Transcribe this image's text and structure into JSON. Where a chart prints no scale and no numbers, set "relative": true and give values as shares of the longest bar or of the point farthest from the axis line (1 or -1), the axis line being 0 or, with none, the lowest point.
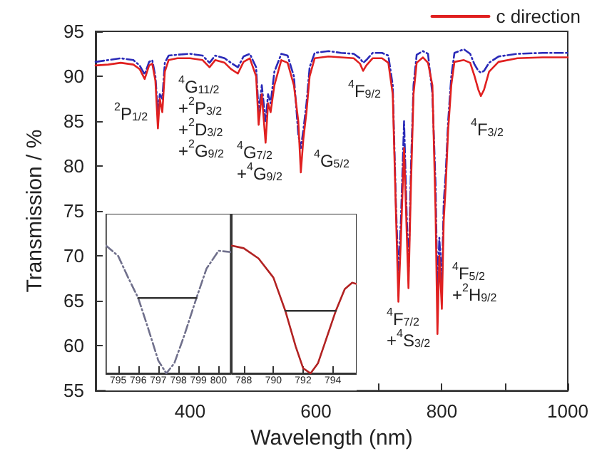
{
  "chart_data": [
    {
      "type": "line",
      "xlabel": "Wavelength (nm)",
      "ylabel": "Transmission / %",
      "legend": "top right",
      "xlim": [
        250,
        1000
      ],
      "xticks": [
        {
          "value": 300,
          "label": null
        },
        400,
        {
          "value": 500,
          "label": null
        },
        600,
        {
          "value": 700,
          "label": null
        },
        800,
        {
          "value": 900,
          "label": null
        },
        1000
      ],
      "ylim": [
        55,
        95
      ],
      "yticks": [
        55,
        60,
        65,
        70,
        75,
        80,
        85,
        90,
        95
      ],
      "x": [
        250,
        270,
        290,
        310,
        320,
        328,
        335,
        340,
        345,
        349,
        352,
        356,
        360,
        366,
        380,
        400,
        420,
        431,
        440,
        455,
        465,
        476,
        485,
        495,
        505,
        509,
        514,
        520,
        524,
        528,
        534,
        545,
        555,
        565,
        572,
        576,
        580,
        585,
        590,
        598,
        620,
        640,
        660,
        670,
        675,
        680,
        690,
        705,
        715,
        722,
        727,
        731,
        735,
        740,
        744,
        747,
        751,
        755,
        760,
        770,
        778,
        785,
        790,
        793,
        796,
        800,
        803,
        806,
        810,
        815,
        820,
        835,
        845,
        852,
        858,
        862,
        867,
        875,
        890,
        920,
        960,
        1000
      ],
      "series": [
        {
          "color": "#2a2ab8",
          "line_style": "dashed",
          "values": [
            91.6,
            91.8,
            92.0,
            91.8,
            91.2,
            90.2,
            91.6,
            91.8,
            90.0,
            86.0,
            88.0,
            87.5,
            91.5,
            92.3,
            92.4,
            92.5,
            92.3,
            91.5,
            92.3,
            92.0,
            91.5,
            91.0,
            92.2,
            92.5,
            91.0,
            86.0,
            89.0,
            85.0,
            88.0,
            87.0,
            90.5,
            92.5,
            92.3,
            90.0,
            83.5,
            82.0,
            84.0,
            87.0,
            91.0,
            92.6,
            92.8,
            92.6,
            92.5,
            92.0,
            91.5,
            91.8,
            92.6,
            92.6,
            92.3,
            89.0,
            76.0,
            68.0,
            74.0,
            85.0,
            75.0,
            68.0,
            80.0,
            89.0,
            92.4,
            92.8,
            92.5,
            88.0,
            78.0,
            66.0,
            72.0,
            67.0,
            76.0,
            79.0,
            85.0,
            90.0,
            92.6,
            93.0,
            92.5,
            91.3,
            90.6,
            90.4,
            90.6,
            91.5,
            92.2,
            92.5,
            92.6,
            92.6
          ]
        },
        {
          "name": "c direction",
          "color": "#e02020",
          "values": [
            91.2,
            91.3,
            91.5,
            91.3,
            90.8,
            89.7,
            91.2,
            91.4,
            89.5,
            84.2,
            87.5,
            86.0,
            90.5,
            91.8,
            92.0,
            92.0,
            91.8,
            91.0,
            91.8,
            91.5,
            90.8,
            90.3,
            91.6,
            92.0,
            90.0,
            84.6,
            88.0,
            82.6,
            87.0,
            86.0,
            89.0,
            91.8,
            91.5,
            89.0,
            85.0,
            79.3,
            83.0,
            86.0,
            90.0,
            92.0,
            92.2,
            92.1,
            92.0,
            91.4,
            90.6,
            91.2,
            92.0,
            92.0,
            91.5,
            88.0,
            75.0,
            64.9,
            72.0,
            82.0,
            73.0,
            66.4,
            78.0,
            88.0,
            91.5,
            92.1,
            91.5,
            89.0,
            75.0,
            61.3,
            70.0,
            64.1,
            74.0,
            77.6,
            84.0,
            89.0,
            91.6,
            91.8,
            91.5,
            90.0,
            88.5,
            87.8,
            88.5,
            90.5,
            91.6,
            92.0,
            92.1,
            92.1
          ]
        }
      ],
      "annotations": [
        "$^{2}$P$_{1/2}$",
        "$^{4}$G$_{11/2}$\n+$^{2}$P$_{3/2}$\n+$^{2}$D$_{3/2}$\n+$^{2}$G$_{9/2}$",
        "$^{4}$G$_{7/2}$\n+$^{4}$G$_{9/2}$",
        "$^{4}$G$_{5/2}$",
        "$^{4}$F$_{9/2}$",
        "$^{4}$F$_{3/2}$",
        "$^{4}$F$_{5/2}$\n+$^{2}$H$_{9/2}$",
        "$^{4}$F$_{7/2}$\n+$^{4}$S$_{3/2}$"
      ]
    },
    {
      "type": "line",
      "relative": true,
      "tick_labels": "x",
      "xlim": [
        794.4,
        800.6
      ],
      "xticks": [
        795,
        796,
        797,
        798,
        799,
        800
      ],
      "series": [
        {
          "color": "#70708c",
          "line_style": "dashed",
          "x": [
            794.4,
            795,
            795.5,
            796,
            796.5,
            797,
            797.4,
            797.8,
            798.3,
            798.9,
            799.4,
            800,
            800.6
          ],
          "values": [
            1,
            0.92,
            0.75,
            0.59,
            0.35,
            0.1,
            0,
            0.08,
            0.3,
            0.59,
            0.82,
            0.96,
            0.95
          ]
        },
        {
          "color": "#333333",
          "x": [
            796,
            798.9
          ],
          "values": [
            0.59,
            0.59
          ]
        }
      ]
    },
    {
      "type": "line",
      "relative": true,
      "tick_labels": "x",
      "xlim": [
        787.2,
        795.6
      ],
      "xticks": [
        788,
        790,
        792,
        794
      ],
      "series": [
        {
          "color": "#b22222",
          "x": [
            787.2,
            788,
            789,
            790,
            790.8,
            791.5,
            792,
            792.5,
            793,
            793.5,
            794.2,
            794.8,
            795.3,
            795.6
          ],
          "values": [
            1,
            0.98,
            0.9,
            0.75,
            0.49,
            0.21,
            0.04,
            0,
            0.08,
            0.25,
            0.49,
            0.66,
            0.71,
            0.7
          ]
        },
        {
          "color": "#333333",
          "x": [
            790.8,
            794.2
          ],
          "values": [
            0.49,
            0.49
          ]
        }
      ]
    }
  ]
}
